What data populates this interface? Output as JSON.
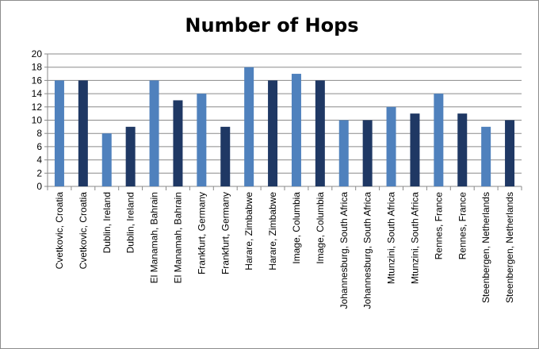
{
  "chart_data": {
    "type": "bar",
    "title": "Number of Hops",
    "xlabel": "",
    "ylabel": "",
    "ylim": [
      0,
      20
    ],
    "yticks": [
      0,
      2,
      4,
      6,
      8,
      10,
      12,
      14,
      16,
      18,
      20
    ],
    "grid": true,
    "legend": "none",
    "categories": [
      "Cvetkovic, Croatia",
      "Cvetkovic, Croatia",
      "Dublin, Ireland",
      "Dublin, Ireland",
      "El Manamah, Bahrain",
      "El Manamah, Bahrain",
      "Frankfurt, Germany",
      "Frankfurt, Germany",
      "Harare, Zimbabwe",
      "Harare, Zimbabwe",
      "Image, Columbia",
      "Image, Columbia",
      "Johannesburg, South Africa",
      "Johannesburg, South Africa",
      "Mtunzini, South Africa",
      "Mtunzini, South Africa",
      "Rennes, France",
      "Rennes, France",
      "Steenbergen, Netherlands",
      "Steenbergen, Netherlands"
    ],
    "values": [
      16,
      16,
      8,
      9,
      16,
      13,
      14,
      9,
      18,
      16,
      17,
      16,
      10,
      10,
      12,
      11,
      14,
      11,
      9,
      10
    ],
    "bar_colors": [
      "#4f81bd",
      "#1f3864"
    ]
  }
}
